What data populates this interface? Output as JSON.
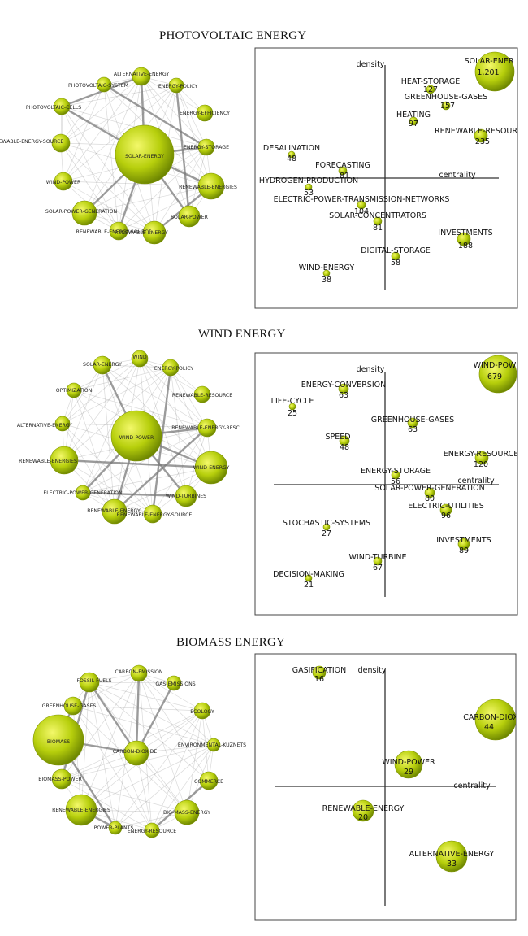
{
  "panels": [
    {
      "title": "PHOTOVOLTAIC ENERGY",
      "axis": {
        "density": "density",
        "centrality": "centrality"
      },
      "network": {
        "hub": "SOLAR-ENERGY",
        "nodes": [
          "ALTERNATIVE-ENERGY",
          "ENERGY-POLICY",
          "ENERGY-EFFICIENCY",
          "ENERGY-STORAGE",
          "RENEWABLE-ENERGIES",
          "SOLAR-POWER",
          "RENEWABLE-ENERGY",
          "RENEWABLE-ENERGY-SOURCE",
          "SOLAR-POWER-GENERATION",
          "WIND-POWER",
          "RENEWABLE-ENERGY-SOURCE",
          "PHOTOVOLTAIC-CELLS",
          "PHOTOVOLTAIC-SYSTEM"
        ]
      },
      "strategic": [
        {
          "name": "SOLAR-ENER",
          "value": "1,201"
        },
        {
          "name": "HEAT-STORAGE",
          "value": "127"
        },
        {
          "name": "GREENHOUSE-GASES",
          "value": "157"
        },
        {
          "name": "HEATING",
          "value": "97"
        },
        {
          "name": "RENEWABLE-RESOUR",
          "value": "235"
        },
        {
          "name": "DESALINATION",
          "value": "48"
        },
        {
          "name": "FORECASTING",
          "value": "81"
        },
        {
          "name": "HYDROGEN-PRODUCTION",
          "value": "53"
        },
        {
          "name": "ELECTRIC-POWER-TRANSMISSION-NETWORKS",
          "value": "104"
        },
        {
          "name": "SOLAR-CONCENTRATORS",
          "value": "81"
        },
        {
          "name": "INVESTMENTS",
          "value": "188"
        },
        {
          "name": "DIGITAL-STORAGE",
          "value": "58"
        },
        {
          "name": "WIND-ENERGY",
          "value": "38"
        }
      ]
    },
    {
      "title": "WIND ENERGY",
      "axis": {
        "density": "density",
        "centrality": "centrality"
      },
      "network": {
        "hub": "WIND-POWER",
        "nodes": [
          "WIND",
          "ENERGY-POLICY",
          "RENEWABLE-RESOURCE",
          "RENEWABLE-ENERGY-RESC",
          "WIND-ENERGY",
          "WIND-TURBINES",
          "RENEWABLE-ENERGY-SOURCE",
          "RENEWABLE-ENERGY",
          "ELECTRIC-POWER-GENERATION",
          "RENEWABLE-ENERGIES",
          "ALTERNATIVE-ENERGY",
          "OPTIMIZATION",
          "SOLAR-ENERGY"
        ]
      },
      "strategic": [
        {
          "name": "WIND-POW",
          "value": "679"
        },
        {
          "name": "ENERGY-CONVERSION",
          "value": "63"
        },
        {
          "name": "LIFE-CYCLE",
          "value": "25"
        },
        {
          "name": "GREENHOUSE-GASES",
          "value": "63"
        },
        {
          "name": "SPEED",
          "value": "48"
        },
        {
          "name": "ENERGY-RESOURCE",
          "value": "120"
        },
        {
          "name": "ENERGY-STORAGE",
          "value": "56"
        },
        {
          "name": "SOLAR-POWER-GENERATION",
          "value": "80"
        },
        {
          "name": "ELECTRIC-UTILITIES",
          "value": "96"
        },
        {
          "name": "STOCHASTIC-SYSTEMS",
          "value": "27"
        },
        {
          "name": "INVESTMENTS",
          "value": "89"
        },
        {
          "name": "WIND-TURBINE",
          "value": "67"
        },
        {
          "name": "DECISION-MAKING",
          "value": "21"
        }
      ]
    },
    {
      "title": "BIOMASS ENERGY",
      "axis": {
        "density": "density",
        "centrality": "centrality"
      },
      "network": {
        "hub": "BIOMASS",
        "nodes": [
          "FOSSIL-FUELS",
          "CARBON-EMISSION",
          "GAS-EMISSIONS",
          "ECOLOGY",
          "ENVIRONMENTAL-KUZNETS",
          "COMMERCE",
          "BIO-MASS-ENERGY",
          "ENERGY-RESOURCE",
          "POWER-PLANTS",
          "RENEWABLE-ENERGIES",
          "BIOMASS-POWER",
          "GREENHOUSE-GASES",
          "CARBON-DIOXIDE"
        ]
      },
      "strategic": [
        {
          "name": "GASIFICATION",
          "value": "16"
        },
        {
          "name": "CARBON-DIOX",
          "value": "44"
        },
        {
          "name": "WIND-POWER",
          "value": "29"
        },
        {
          "name": "RENEWABLE-ENERGY",
          "value": "20"
        },
        {
          "name": "ALTERNATIVE-ENERGY",
          "value": "33"
        }
      ]
    }
  ],
  "colors": {
    "node_light": "#e8f23a",
    "node_dark": "#6f8a00",
    "edge": "#7a7a7a",
    "axis": "#333333"
  }
}
